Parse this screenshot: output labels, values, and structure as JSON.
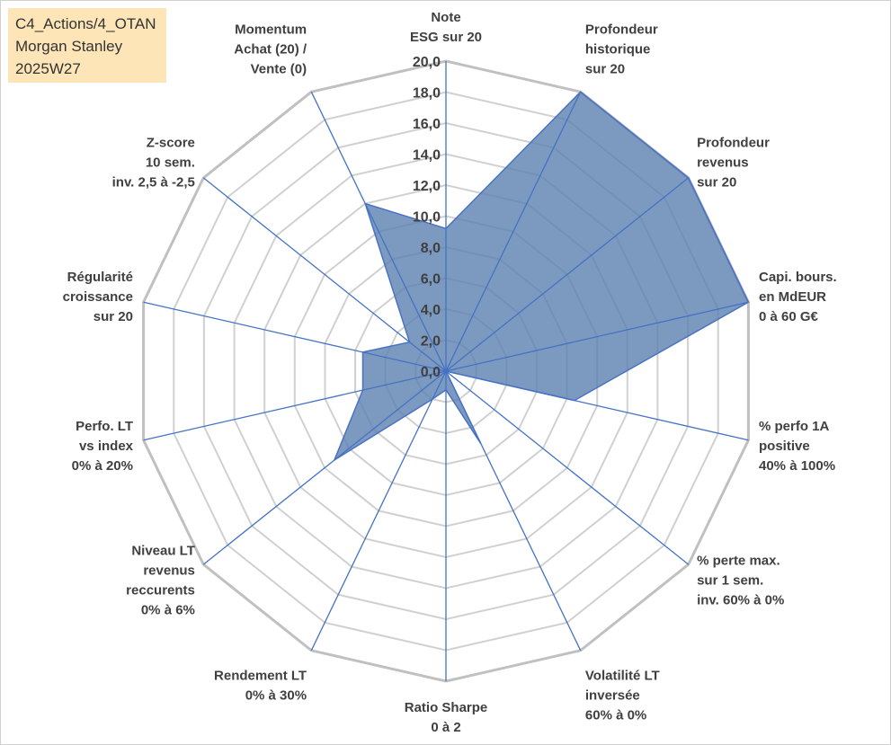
{
  "title_box": {
    "line1": "C4_Actions/4_OTAN",
    "line2": "Morgan Stanley",
    "line3": "2025W27"
  },
  "chart_data": {
    "type": "radar",
    "rlim": [
      0,
      20
    ],
    "tick_step": 2,
    "tick_labels": [
      "0,0",
      "2,0",
      "4,0",
      "6,0",
      "8,0",
      "10,0",
      "12,0",
      "14,0",
      "16,0",
      "18,0",
      "20,0"
    ],
    "grid": true,
    "axes": [
      {
        "lines": [
          "Note",
          "ESG sur 20"
        ]
      },
      {
        "lines": [
          "Profondeur",
          "historique",
          "sur 20"
        ]
      },
      {
        "lines": [
          "Profondeur",
          "revenus",
          "sur 20"
        ]
      },
      {
        "lines": [
          "Capi. bours.",
          "en MdEUR",
          "0 à 60 G€"
        ]
      },
      {
        "lines": [
          "% perfo 1A",
          "positive",
          "40% à 100%"
        ]
      },
      {
        "lines": [
          "% perte max.",
          "sur 1 sem.",
          "inv. 60% à 0%"
        ]
      },
      {
        "lines": [
          "Volatilité LT",
          "inversée",
          "60% à 0%"
        ]
      },
      {
        "lines": [
          "Ratio Sharpe",
          "0 à 2"
        ]
      },
      {
        "lines": [
          "Rendement LT",
          "0% à 30%"
        ]
      },
      {
        "lines": [
          "Niveau LT",
          "revenus",
          "reccurents",
          "0% à 6%"
        ]
      },
      {
        "lines": [
          "Perfo. LT",
          "vs index",
          "0% à 20%"
        ]
      },
      {
        "lines": [
          "Régularité",
          "croissance",
          "sur 20"
        ]
      },
      {
        "lines": [
          "Z-score",
          "10 sem.",
          "inv. 2,5 à -2,5"
        ]
      },
      {
        "lines": [
          "Momentum",
          "Achat (20) /",
          "Vente (0)"
        ]
      }
    ],
    "series": [
      {
        "values": [
          9.2,
          20,
          20,
          20,
          8.5,
          0,
          5.2,
          1.2,
          2.0,
          9.2,
          5.5,
          5.5,
          3.0,
          12.0
        ]
      }
    ],
    "colors": {
      "fill": "#5b81b0",
      "fill_opacity": 0.8,
      "outline": "#4a72c4",
      "spokes": "#4472c4",
      "grid_outer": "#c0c0c0",
      "grid_inner": "#d0d0d0"
    }
  }
}
